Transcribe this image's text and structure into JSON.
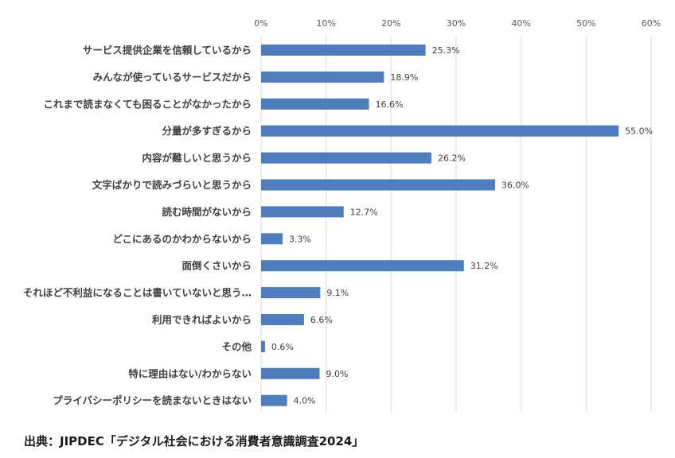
{
  "chart_data": {
    "type": "bar",
    "orientation": "horizontal",
    "categories": [
      "サービス提供企業を信頼しているから",
      "みんなが使っているサービスだから",
      "これまで読まなくても困ることがなかったから",
      "分量が多すぎるから",
      "内容が難しいと思うから",
      "文字ばかりで読みづらいと思うから",
      "読む時間がないから",
      "どこにあるのかわからないから",
      "面倒くさいから",
      "それほど不利益になることは書いていないと思う…",
      "利用できればよいから",
      "その他",
      "特に理由はない/わからない",
      "プライバシーポリシーを読まないときはない"
    ],
    "values": [
      25.3,
      18.9,
      16.6,
      55.0,
      26.2,
      36.0,
      12.7,
      3.3,
      31.2,
      9.1,
      6.6,
      0.6,
      9.0,
      4.0
    ],
    "value_labels": [
      "25.3%",
      "18.9%",
      "16.6%",
      "55.0%",
      "26.2%",
      "36.0%",
      "12.7%",
      "3.3%",
      "31.2%",
      "9.1%",
      "6.6%",
      "0.6%",
      "9.0%",
      "4.0%"
    ],
    "xlim": [
      0,
      60
    ],
    "xticks": [
      "0%",
      "10%",
      "20%",
      "30%",
      "40%",
      "50%",
      "60%"
    ],
    "axis_position": "top",
    "grid": true,
    "bar_color": "#4e7ebd",
    "grid_color": "#d9d9d9"
  },
  "source": "出典：JIPDEC「デジタル社会における消費者意識調査2024」"
}
